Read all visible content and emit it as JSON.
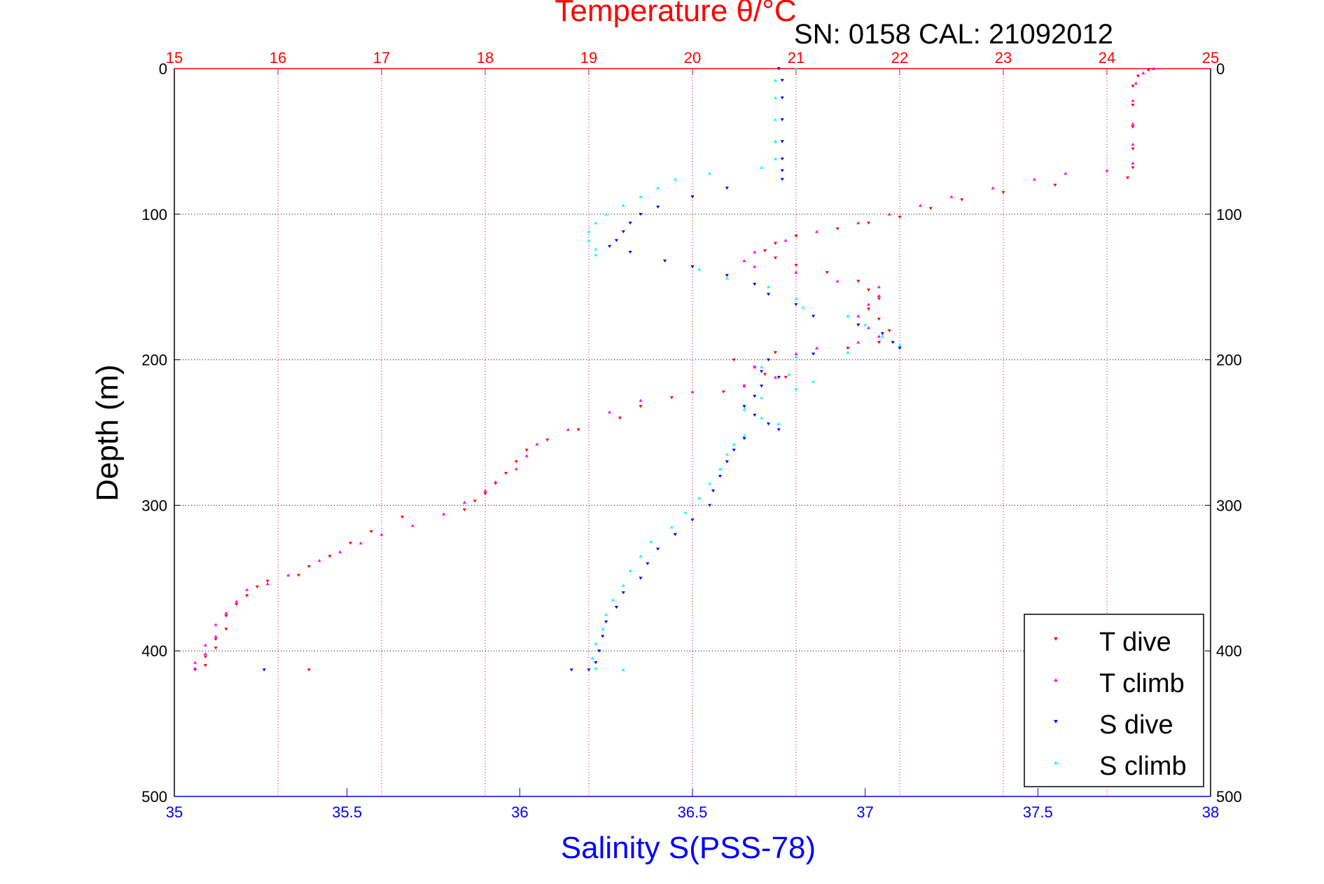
{
  "chart_data": {
    "type": "scatter",
    "title": "Temperature θ/°C",
    "subtitle": "SN: 0158  CAL: 21092012",
    "ylabel": "Depth (m)",
    "xlabel": "Salinity S(PSS-78)",
    "ylim": [
      0,
      500
    ],
    "y_reversed": true,
    "y_ticks": [
      "0",
      "100",
      "200",
      "300",
      "400",
      "500"
    ],
    "x_bottom": {
      "label": "Salinity S(PSS-78)",
      "range": [
        35,
        38
      ],
      "ticks": [
        "35",
        "35.5",
        "36",
        "36.5",
        "37",
        "37.5",
        "38"
      ],
      "color": "#0000ff"
    },
    "x_top": {
      "label": "Temperature θ/°C",
      "range": [
        15,
        25
      ],
      "ticks": [
        "15",
        "16",
        "17",
        "18",
        "19",
        "20",
        "21",
        "22",
        "23",
        "24",
        "25"
      ],
      "color": "#ff0000"
    },
    "grid": true,
    "legend_position": "bottom-right",
    "series": [
      {
        "name": "T dive",
        "axis": "top",
        "color": "#ff0000",
        "marker": "triangle-down",
        "points": [
          [
            24.4,
            1
          ],
          [
            24.3,
            5
          ],
          [
            24.25,
            12
          ],
          [
            24.25,
            25
          ],
          [
            24.25,
            40
          ],
          [
            24.25,
            55
          ],
          [
            24.25,
            68
          ],
          [
            24.2,
            75
          ],
          [
            23.5,
            80
          ],
          [
            23.0,
            85
          ],
          [
            22.6,
            90
          ],
          [
            22.3,
            96
          ],
          [
            22.0,
            102
          ],
          [
            21.7,
            106
          ],
          [
            21.4,
            110
          ],
          [
            21.0,
            115
          ],
          [
            20.8,
            120
          ],
          [
            20.7,
            125
          ],
          [
            20.8,
            130
          ],
          [
            21.0,
            135
          ],
          [
            21.3,
            140
          ],
          [
            21.6,
            146
          ],
          [
            21.7,
            152
          ],
          [
            21.8,
            158
          ],
          [
            21.7,
            165
          ],
          [
            21.8,
            172
          ],
          [
            21.9,
            180
          ],
          [
            21.8,
            188
          ],
          [
            21.5,
            192
          ],
          [
            20.8,
            195
          ],
          [
            20.4,
            200
          ],
          [
            20.6,
            205
          ],
          [
            20.7,
            210
          ],
          [
            20.9,
            212
          ],
          [
            20.5,
            218
          ],
          [
            20.3,
            222
          ],
          [
            19.8,
            226
          ],
          [
            19.5,
            232
          ],
          [
            19.3,
            240
          ],
          [
            18.9,
            248
          ],
          [
            18.6,
            255
          ],
          [
            18.4,
            262
          ],
          [
            18.3,
            270
          ],
          [
            18.2,
            278
          ],
          [
            18.1,
            285
          ],
          [
            18.0,
            292
          ],
          [
            17.9,
            297
          ],
          [
            17.8,
            303
          ],
          [
            17.2,
            308
          ],
          [
            16.9,
            318
          ],
          [
            16.7,
            326
          ],
          [
            16.5,
            335
          ],
          [
            16.3,
            342
          ],
          [
            16.2,
            348
          ],
          [
            15.9,
            352
          ],
          [
            15.8,
            356
          ],
          [
            15.7,
            362
          ],
          [
            15.6,
            368
          ],
          [
            15.5,
            376
          ],
          [
            15.5,
            385
          ],
          [
            15.4,
            392
          ],
          [
            15.4,
            398
          ],
          [
            15.3,
            404
          ],
          [
            15.3,
            410
          ],
          [
            15.2,
            413
          ],
          [
            16.3,
            413
          ]
        ]
      },
      {
        "name": "T climb",
        "axis": "top",
        "color": "#ff00ff",
        "marker": "triangle-up",
        "points": [
          [
            24.45,
            0
          ],
          [
            24.35,
            3
          ],
          [
            24.28,
            10
          ],
          [
            24.25,
            22
          ],
          [
            24.25,
            38
          ],
          [
            24.25,
            52
          ],
          [
            24.25,
            65
          ],
          [
            24.0,
            70
          ],
          [
            23.6,
            72
          ],
          [
            23.3,
            76
          ],
          [
            22.9,
            82
          ],
          [
            22.5,
            88
          ],
          [
            22.2,
            94
          ],
          [
            21.9,
            100
          ],
          [
            21.6,
            106
          ],
          [
            21.2,
            112
          ],
          [
            20.9,
            118
          ],
          [
            20.6,
            126
          ],
          [
            20.5,
            132
          ],
          [
            20.6,
            136
          ],
          [
            21.0,
            140
          ],
          [
            21.4,
            146
          ],
          [
            21.8,
            150
          ],
          [
            21.8,
            156
          ],
          [
            21.7,
            162
          ],
          [
            21.6,
            170
          ],
          [
            21.7,
            178
          ],
          [
            21.8,
            184
          ],
          [
            21.6,
            188
          ],
          [
            21.2,
            192
          ],
          [
            21.0,
            196
          ],
          [
            20.6,
            205
          ],
          [
            20.8,
            212
          ],
          [
            20.5,
            218
          ],
          [
            20.0,
            222
          ],
          [
            19.5,
            228
          ],
          [
            19.2,
            236
          ],
          [
            18.8,
            248
          ],
          [
            18.5,
            258
          ],
          [
            18.4,
            266
          ],
          [
            18.3,
            275
          ],
          [
            18.1,
            284
          ],
          [
            18.0,
            290
          ],
          [
            17.8,
            298
          ],
          [
            17.6,
            306
          ],
          [
            17.3,
            314
          ],
          [
            17.0,
            320
          ],
          [
            16.8,
            326
          ],
          [
            16.6,
            332
          ],
          [
            16.4,
            338
          ],
          [
            16.1,
            348
          ],
          [
            15.9,
            354
          ],
          [
            15.7,
            358
          ],
          [
            15.6,
            366
          ],
          [
            15.5,
            374
          ],
          [
            15.4,
            382
          ],
          [
            15.4,
            390
          ],
          [
            15.3,
            396
          ],
          [
            15.3,
            402
          ],
          [
            15.2,
            408
          ],
          [
            15.2,
            412
          ]
        ]
      },
      {
        "name": "S dive",
        "axis": "bottom",
        "color": "#0000ff",
        "marker": "triangle-down",
        "points": [
          [
            36.75,
            0
          ],
          [
            36.76,
            8
          ],
          [
            36.76,
            20
          ],
          [
            36.76,
            35
          ],
          [
            36.76,
            50
          ],
          [
            36.76,
            62
          ],
          [
            36.76,
            70
          ],
          [
            36.76,
            76
          ],
          [
            36.6,
            82
          ],
          [
            36.5,
            88
          ],
          [
            36.4,
            95
          ],
          [
            36.35,
            100
          ],
          [
            36.32,
            106
          ],
          [
            36.3,
            112
          ],
          [
            36.28,
            118
          ],
          [
            36.26,
            122
          ],
          [
            36.32,
            126
          ],
          [
            36.42,
            132
          ],
          [
            36.5,
            136
          ],
          [
            36.6,
            142
          ],
          [
            36.68,
            148
          ],
          [
            36.72,
            155
          ],
          [
            36.8,
            162
          ],
          [
            36.85,
            170
          ],
          [
            36.98,
            176
          ],
          [
            37.05,
            182
          ],
          [
            37.08,
            188
          ],
          [
            37.1,
            192
          ],
          [
            36.85,
            196
          ],
          [
            36.72,
            200
          ],
          [
            36.7,
            208
          ],
          [
            36.75,
            212
          ],
          [
            36.7,
            218
          ],
          [
            36.68,
            225
          ],
          [
            36.65,
            232
          ],
          [
            36.68,
            238
          ],
          [
            36.72,
            244
          ],
          [
            36.75,
            248
          ],
          [
            36.65,
            254
          ],
          [
            36.62,
            262
          ],
          [
            36.6,
            270
          ],
          [
            36.58,
            280
          ],
          [
            36.56,
            290
          ],
          [
            36.55,
            300
          ],
          [
            36.5,
            310
          ],
          [
            36.45,
            320
          ],
          [
            36.4,
            330
          ],
          [
            36.37,
            340
          ],
          [
            36.35,
            350
          ],
          [
            36.3,
            360
          ],
          [
            36.28,
            370
          ],
          [
            36.25,
            380
          ],
          [
            36.24,
            390
          ],
          [
            36.23,
            400
          ],
          [
            36.22,
            408
          ],
          [
            36.2,
            413
          ],
          [
            35.26,
            413
          ],
          [
            36.15,
            413
          ]
        ]
      },
      {
        "name": "S climb",
        "axis": "bottom",
        "color": "#00ffff",
        "marker": "triangle-up",
        "points": [
          [
            36.8,
            0
          ],
          [
            36.74,
            8
          ],
          [
            36.74,
            20
          ],
          [
            36.74,
            35
          ],
          [
            36.74,
            50
          ],
          [
            36.74,
            62
          ],
          [
            36.7,
            68
          ],
          [
            36.55,
            72
          ],
          [
            36.45,
            76
          ],
          [
            36.4,
            82
          ],
          [
            36.35,
            88
          ],
          [
            36.3,
            94
          ],
          [
            36.25,
            100
          ],
          [
            36.22,
            106
          ],
          [
            36.2,
            112
          ],
          [
            36.2,
            118
          ],
          [
            36.22,
            124
          ],
          [
            36.22,
            128
          ],
          [
            36.52,
            138
          ],
          [
            36.6,
            144
          ],
          [
            36.72,
            150
          ],
          [
            36.8,
            158
          ],
          [
            36.82,
            164
          ],
          [
            36.95,
            170
          ],
          [
            37.0,
            176
          ],
          [
            37.05,
            184
          ],
          [
            37.1,
            190
          ],
          [
            36.95,
            195
          ],
          [
            36.8,
            198
          ],
          [
            36.7,
            205
          ],
          [
            36.78,
            210
          ],
          [
            36.85,
            215
          ],
          [
            36.8,
            220
          ],
          [
            36.7,
            226
          ],
          [
            36.65,
            234
          ],
          [
            36.7,
            240
          ],
          [
            36.75,
            244
          ],
          [
            36.65,
            252
          ],
          [
            36.62,
            258
          ],
          [
            36.6,
            265
          ],
          [
            36.58,
            275
          ],
          [
            36.55,
            285
          ],
          [
            36.52,
            295
          ],
          [
            36.48,
            305
          ],
          [
            36.44,
            315
          ],
          [
            36.38,
            325
          ],
          [
            36.35,
            335
          ],
          [
            36.32,
            345
          ],
          [
            36.3,
            355
          ],
          [
            36.27,
            365
          ],
          [
            36.25,
            375
          ],
          [
            36.24,
            385
          ],
          [
            36.22,
            395
          ],
          [
            36.21,
            405
          ],
          [
            36.22,
            412
          ],
          [
            36.3,
            413
          ]
        ]
      }
    ]
  }
}
